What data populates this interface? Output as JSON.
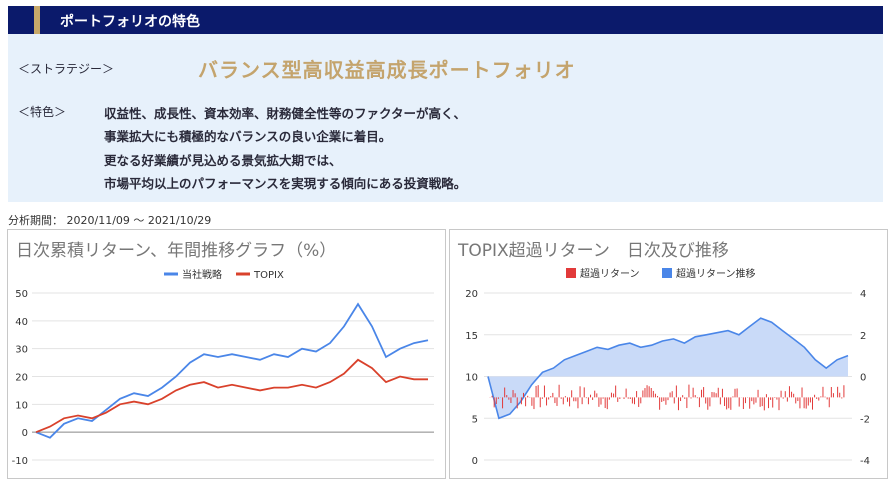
{
  "header": {
    "title": "ポートフォリオの特色"
  },
  "features": {
    "strategy_label": "＜ストラテジー＞",
    "strategy_name": "バランス型高収益高成長ポートフォリオ",
    "feature_label": "＜特色＞",
    "lines": [
      "収益性、成長性、資本効率、財務健全性等のファクターが高く、",
      "事業拡大にも積極的なバランスの良い企業に着目。",
      "更なる好業績が見込める景気拡大期では、",
      "市場平均以上のパフォーマンスを実現する傾向にある投資戦略。"
    ]
  },
  "period": {
    "text": "分析期間： 2020/11/09 ～ 2021/10/29"
  },
  "colors": {
    "header_bg": "#0b1a6b",
    "accent_gold": "#c4a46d",
    "feature_bg": "#e7f1fb",
    "series_blue": "#4a86e8",
    "series_red": "#d9412b",
    "excess_red": "#e23a3a",
    "area_blue": "#c9daf8"
  },
  "chart_data": [
    {
      "type": "line",
      "title": "日次累積リターン、年間推移グラフ（%）",
      "ylim": [
        -10,
        50
      ],
      "yticks": [
        -10,
        0,
        10,
        20,
        30,
        40,
        50
      ],
      "legend": "top",
      "series": [
        {
          "name": "当社戦略",
          "color": "#4a86e8",
          "values": [
            0,
            -2,
            3,
            5,
            4,
            8,
            12,
            14,
            13,
            16,
            20,
            25,
            28,
            27,
            28,
            27,
            26,
            28,
            27,
            30,
            29,
            32,
            38,
            46,
            38,
            27,
            30,
            32,
            33
          ]
        },
        {
          "name": "TOPIX",
          "color": "#d9412b",
          "values": [
            0,
            2,
            5,
            6,
            5,
            7,
            10,
            11,
            10,
            12,
            15,
            17,
            18,
            16,
            17,
            16,
            15,
            16,
            16,
            17,
            16,
            18,
            21,
            26,
            23,
            18,
            20,
            19,
            19
          ]
        }
      ]
    },
    {
      "type": "bar",
      "title": "TOPIX超過リターン　日次及び推移",
      "ylim_left": [
        0,
        20
      ],
      "yticks_left": [
        0,
        5,
        10,
        15,
        20
      ],
      "ylim_right": [
        -4,
        4
      ],
      "yticks_right": [
        -4,
        -2,
        0,
        2,
        4
      ],
      "legend": "top",
      "series": [
        {
          "name": "超過リターン",
          "color": "#e23a3a",
          "axis": "left"
        },
        {
          "name": "超過リターン推移",
          "color": "#4a86e8",
          "axis": "right",
          "values": [
            0,
            -2,
            -1.8,
            -1.2,
            -0.4,
            0.2,
            0.4,
            0.8,
            1.0,
            1.2,
            1.4,
            1.3,
            1.5,
            1.6,
            1.4,
            1.5,
            1.7,
            1.8,
            1.6,
            1.9,
            2.0,
            2.1,
            2.2,
            2.0,
            2.4,
            2.8,
            2.6,
            2.2,
            1.8,
            1.4,
            0.8,
            0.4,
            0.8,
            1.0
          ]
        }
      ]
    }
  ]
}
